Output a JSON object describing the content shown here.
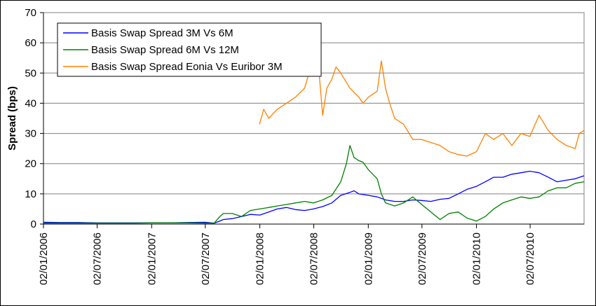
{
  "chart_data": {
    "type": "line",
    "title": "",
    "xlabel": "",
    "ylabel": "Spread (bps)",
    "ylim": [
      0,
      70
    ],
    "yticks": [
      0,
      10,
      20,
      30,
      40,
      50,
      60,
      70
    ],
    "xlim": [
      "02/01/2006",
      "31/12/2010"
    ],
    "xticks": [
      "02/01/2006",
      "02/07/2006",
      "02/01/2007",
      "02/07/2007",
      "02/01/2008",
      "02/07/2008",
      "02/01/2009",
      "02/07/2009",
      "02/01/2010",
      "02/07/2010"
    ],
    "grid": "horizontal",
    "legend_position": "top-left",
    "series": [
      {
        "name": "Basis Swap Spread 3M Vs 6M",
        "color": "#0000ff",
        "points": [
          [
            "02/01/2006",
            0.6
          ],
          [
            "01/03/2006",
            0.5
          ],
          [
            "01/05/2006",
            0.5
          ],
          [
            "01/07/2006",
            0.4
          ],
          [
            "01/09/2006",
            0.4
          ],
          [
            "01/11/2006",
            0.4
          ],
          [
            "02/01/2007",
            0.4
          ],
          [
            "01/03/2007",
            0.4
          ],
          [
            "01/05/2007",
            0.5
          ],
          [
            "01/07/2007",
            0.6
          ],
          [
            "01/08/2007",
            0.3
          ],
          [
            "15/08/2007",
            0.8
          ],
          [
            "01/09/2007",
            1.5
          ],
          [
            "01/10/2007",
            1.8
          ],
          [
            "01/11/2007",
            2.5
          ],
          [
            "01/12/2007",
            3.2
          ],
          [
            "02/01/2008",
            3.0
          ],
          [
            "01/02/2008",
            4.0
          ],
          [
            "01/03/2008",
            5.0
          ],
          [
            "01/04/2008",
            5.5
          ],
          [
            "01/05/2008",
            4.8
          ],
          [
            "01/06/2008",
            4.5
          ],
          [
            "01/07/2008",
            5.0
          ],
          [
            "01/08/2008",
            5.8
          ],
          [
            "01/09/2008",
            7.0
          ],
          [
            "01/10/2008",
            9.5
          ],
          [
            "01/11/2008",
            10.5
          ],
          [
            "15/11/2008",
            11.0
          ],
          [
            "01/12/2008",
            10.0
          ],
          [
            "02/01/2009",
            9.5
          ],
          [
            "01/02/2009",
            9.0
          ],
          [
            "01/03/2009",
            8.0
          ],
          [
            "01/04/2009",
            7.5
          ],
          [
            "01/05/2009",
            7.5
          ],
          [
            "01/06/2009",
            8.0
          ],
          [
            "01/07/2009",
            7.8
          ],
          [
            "01/08/2009",
            7.5
          ],
          [
            "01/09/2009",
            8.2
          ],
          [
            "01/10/2009",
            8.5
          ],
          [
            "01/11/2009",
            10.0
          ],
          [
            "01/12/2009",
            11.5
          ],
          [
            "02/01/2010",
            12.5
          ],
          [
            "01/02/2010",
            14.0
          ],
          [
            "01/03/2010",
            15.5
          ],
          [
            "01/04/2010",
            15.5
          ],
          [
            "01/05/2010",
            16.5
          ],
          [
            "01/06/2010",
            17.0
          ],
          [
            "01/07/2010",
            17.5
          ],
          [
            "01/08/2010",
            17.0
          ],
          [
            "01/09/2010",
            15.5
          ],
          [
            "01/10/2010",
            14.0
          ],
          [
            "01/11/2010",
            14.5
          ],
          [
            "01/12/2010",
            15.0
          ],
          [
            "31/12/2010",
            16.0
          ]
        ]
      },
      {
        "name": "Basis Swap Spread 6M Vs 12M",
        "color": "#008000",
        "points": [
          [
            "02/01/2006",
            0.3
          ],
          [
            "01/03/2006",
            0.3
          ],
          [
            "01/05/2006",
            0.3
          ],
          [
            "01/07/2006",
            0.3
          ],
          [
            "01/09/2006",
            0.3
          ],
          [
            "01/11/2006",
            0.3
          ],
          [
            "02/01/2007",
            0.4
          ],
          [
            "01/03/2007",
            0.4
          ],
          [
            "01/05/2007",
            0.4
          ],
          [
            "01/07/2007",
            0.3
          ],
          [
            "01/08/2007",
            0.3
          ],
          [
            "20/08/2007",
            2.5
          ],
          [
            "01/09/2007",
            3.5
          ],
          [
            "01/10/2007",
            3.5
          ],
          [
            "01/11/2007",
            2.5
          ],
          [
            "01/12/2007",
            4.5
          ],
          [
            "02/01/2008",
            5.0
          ],
          [
            "01/02/2008",
            5.5
          ],
          [
            "01/03/2008",
            6.0
          ],
          [
            "01/04/2008",
            6.5
          ],
          [
            "01/05/2008",
            7.0
          ],
          [
            "01/06/2008",
            7.5
          ],
          [
            "01/07/2008",
            7.0
          ],
          [
            "01/08/2008",
            8.0
          ],
          [
            "01/09/2008",
            9.5
          ],
          [
            "01/10/2008",
            14.0
          ],
          [
            "20/10/2008",
            20.0
          ],
          [
            "01/11/2008",
            26.0
          ],
          [
            "15/11/2008",
            22.0
          ],
          [
            "01/12/2008",
            21.0
          ],
          [
            "15/12/2008",
            20.5
          ],
          [
            "02/01/2009",
            18.0
          ],
          [
            "01/02/2009",
            15.0
          ],
          [
            "15/02/2009",
            10.0
          ],
          [
            "01/03/2009",
            7.0
          ],
          [
            "01/04/2009",
            6.0
          ],
          [
            "01/05/2009",
            7.0
          ],
          [
            "01/06/2009",
            9.0
          ],
          [
            "01/07/2009",
            6.5
          ],
          [
            "01/08/2009",
            4.0
          ],
          [
            "01/09/2009",
            1.5
          ],
          [
            "01/10/2009",
            3.5
          ],
          [
            "01/11/2009",
            4.0
          ],
          [
            "01/12/2009",
            2.0
          ],
          [
            "02/01/2010",
            1.0
          ],
          [
            "01/02/2010",
            2.5
          ],
          [
            "01/03/2010",
            5.0
          ],
          [
            "01/04/2010",
            7.0
          ],
          [
            "01/05/2010",
            8.0
          ],
          [
            "01/06/2010",
            9.0
          ],
          [
            "01/07/2010",
            8.5
          ],
          [
            "01/08/2010",
            9.0
          ],
          [
            "01/09/2010",
            11.0
          ],
          [
            "01/10/2010",
            12.0
          ],
          [
            "01/11/2010",
            12.0
          ],
          [
            "01/12/2010",
            13.5
          ],
          [
            "31/12/2010",
            14.0
          ]
        ]
      },
      {
        "name": "Basis Swap Spread Eonia Vs Euribor 3M",
        "color": "#ff8000",
        "points": [
          [
            "01/01/2008",
            33.0
          ],
          [
            "15/01/2008",
            38.0
          ],
          [
            "01/02/2008",
            35.0
          ],
          [
            "01/03/2008",
            38.0
          ],
          [
            "01/04/2008",
            40.0
          ],
          [
            "01/05/2008",
            42.0
          ],
          [
            "01/06/2008",
            45.0
          ],
          [
            "01/07/2008",
            55.0
          ],
          [
            "10/07/2008",
            63.0
          ],
          [
            "20/07/2008",
            50.0
          ],
          [
            "01/08/2008",
            36.0
          ],
          [
            "15/08/2008",
            45.0
          ],
          [
            "01/09/2008",
            48.0
          ],
          [
            "15/09/2008",
            52.0
          ],
          [
            "01/10/2008",
            50.0
          ],
          [
            "01/11/2008",
            45.0
          ],
          [
            "01/12/2008",
            42.0
          ],
          [
            "15/12/2008",
            40.0
          ],
          [
            "02/01/2009",
            42.0
          ],
          [
            "01/02/2009",
            44.0
          ],
          [
            "15/02/2009",
            54.0
          ],
          [
            "01/03/2009",
            45.0
          ],
          [
            "15/03/2009",
            40.0
          ],
          [
            "01/04/2009",
            35.0
          ],
          [
            "01/05/2009",
            33.0
          ],
          [
            "01/06/2009",
            28.0
          ],
          [
            "01/07/2009",
            28.0
          ],
          [
            "01/08/2009",
            27.0
          ],
          [
            "01/09/2009",
            26.0
          ],
          [
            "01/10/2009",
            24.0
          ],
          [
            "01/11/2009",
            23.0
          ],
          [
            "01/12/2009",
            22.5
          ],
          [
            "02/01/2010",
            24.0
          ],
          [
            "01/02/2010",
            30.0
          ],
          [
            "01/03/2010",
            28.0
          ],
          [
            "01/04/2010",
            30.0
          ],
          [
            "01/05/2010",
            26.0
          ],
          [
            "01/06/2010",
            30.0
          ],
          [
            "01/07/2010",
            29.0
          ],
          [
            "01/08/2010",
            36.0
          ],
          [
            "01/09/2010",
            31.0
          ],
          [
            "01/10/2010",
            28.0
          ],
          [
            "01/11/2010",
            26.0
          ],
          [
            "01/12/2010",
            25.0
          ],
          [
            "15/12/2010",
            30.0
          ],
          [
            "31/12/2010",
            31.0
          ]
        ]
      }
    ]
  }
}
